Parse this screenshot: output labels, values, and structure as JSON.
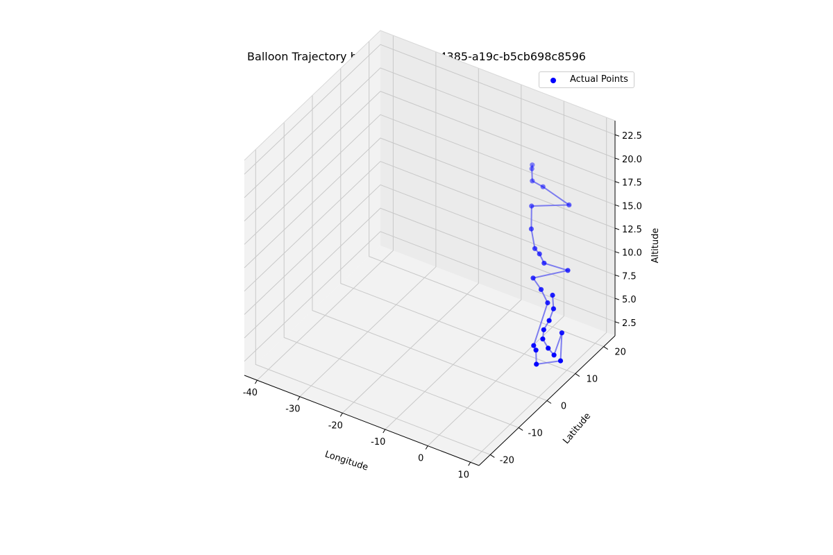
{
  "title": "Balloon Trajectory b71f9e95-74bd-4385-a19c-b5cb698c8596",
  "legend": {
    "label": "Actual Points",
    "color": "#0000ff"
  },
  "colors": {
    "line": "#7070f0",
    "point": "#0000ff",
    "pane": "#f2f2f2",
    "grid": "#c8c8c8"
  },
  "chart_data": {
    "type": "scatter",
    "projection": "3d",
    "title": "Balloon Trajectory b71f9e95-74bd-4385-a19c-b5cb698c8596",
    "xlabel": "Longitude",
    "ylabel": "Latitude",
    "zlabel": "Altitude",
    "xlim": [
      -43,
      12
    ],
    "ylim": [
      -24,
      24
    ],
    "zlim": [
      1,
      24
    ],
    "xticks": [
      -40,
      -30,
      -20,
      -10,
      0,
      10
    ],
    "yticks": [
      -20,
      -10,
      0,
      10,
      20
    ],
    "zticks": [
      2.5,
      5.0,
      7.5,
      10.0,
      12.5,
      15.0,
      17.5,
      20.0,
      22.5
    ],
    "grid": true,
    "legend_position": "top-right",
    "series": [
      {
        "name": "Actual Points",
        "connected": true,
        "points": [
          {
            "x": 5.1,
            "y": 5.2,
            "z": 23.5
          },
          {
            "x": 4.4,
            "y": 6.1,
            "z": 22.7
          },
          {
            "x": 4.3,
            "y": 6.4,
            "z": 21.3
          },
          {
            "x": 5.8,
            "y": 7.9,
            "z": 20.5
          },
          {
            "x": 10.4,
            "y": 10.2,
            "z": 18.7
          },
          {
            "x": 4.0,
            "y": 6.6,
            "z": 18.5
          },
          {
            "x": 4.2,
            "y": 6.2,
            "z": 16.2
          },
          {
            "x": 4.3,
            "y": 7.3,
            "z": 13.8
          },
          {
            "x": 5.2,
            "y": 7.6,
            "z": 13.3
          },
          {
            "x": 5.6,
            "y": 8.6,
            "z": 12.1
          },
          {
            "x": 9.7,
            "y": 10.8,
            "z": 11.4
          },
          {
            "x": 4.1,
            "y": 7.0,
            "z": 10.7
          },
          {
            "x": 5.3,
            "y": 8.0,
            "z": 9.4
          },
          {
            "x": 6.1,
            "y": 9.1,
            "z": 7.8
          },
          {
            "x": 3.9,
            "y": 7.5,
            "z": 3.3
          },
          {
            "x": 4.1,
            "y": 8.0,
            "z": 2.7
          },
          {
            "x": 5.0,
            "y": 6.8,
            "z": 1.7
          },
          {
            "x": 8.6,
            "y": 9.9,
            "z": 1.8
          },
          {
            "x": 8.5,
            "y": 10.5,
            "z": 4.6
          },
          {
            "x": 6.0,
            "y": 11.5,
            "z": 1.5
          },
          {
            "x": 3.5,
            "y": 13.2,
            "z": 1.3
          },
          {
            "x": 1.3,
            "y": 14.6,
            "z": 1.5
          },
          {
            "x": 1.0,
            "y": 15.4,
            "z": 2.2
          },
          {
            "x": 1.6,
            "y": 16.4,
            "z": 3.0
          },
          {
            "x": 2.9,
            "y": 16.0,
            "z": 4.6
          },
          {
            "x": 2.8,
            "y": 15.8,
            "z": 6.1
          }
        ]
      }
    ]
  }
}
